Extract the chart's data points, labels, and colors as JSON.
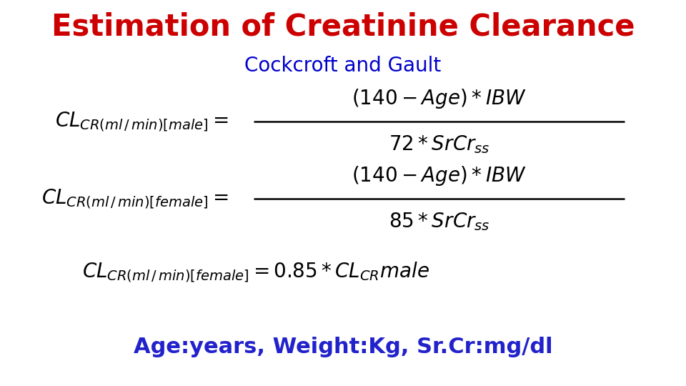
{
  "title": "Estimation of Creatinine Clearance",
  "title_color": "#cc0000",
  "title_fontsize": 30,
  "subtitle": "Cockcroft and Gault",
  "subtitle_color": "#0000cc",
  "subtitle_fontsize": 20,
  "formula_color": "#000000",
  "formula_fontsize": 20,
  "footnote": "Age:years, Weight:Kg, Sr.Cr:mg/dl",
  "footnote_color": "#2222cc",
  "footnote_fontsize": 22,
  "bg_color": "#ffffff",
  "fig_width": 9.6,
  "fig_height": 5.4,
  "dpi": 100
}
